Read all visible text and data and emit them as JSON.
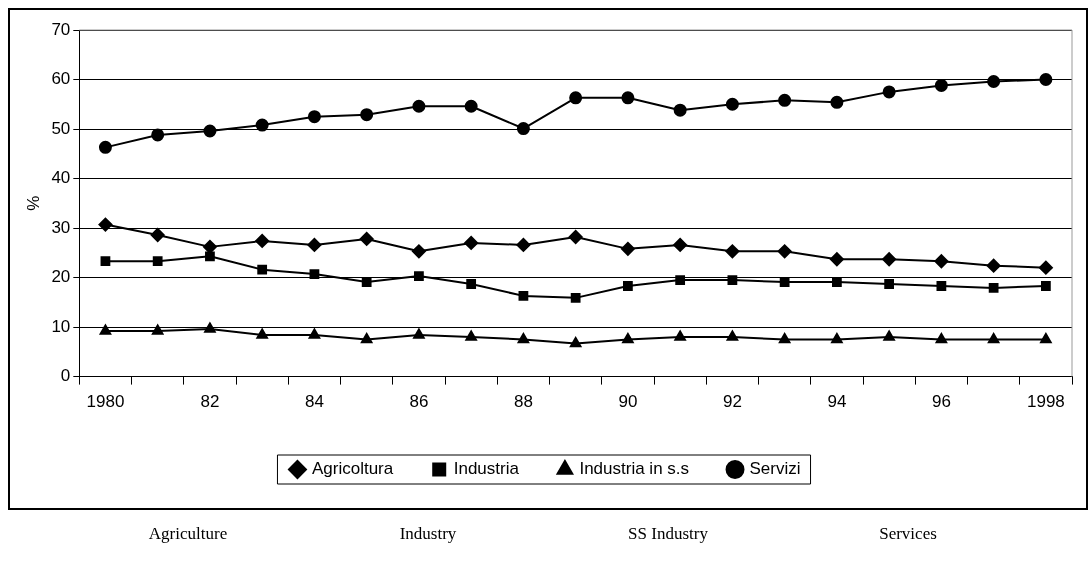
{
  "chart_data": {
    "type": "line",
    "ylabel": "%",
    "categories": [
      "1980",
      null,
      "82",
      null,
      "84",
      null,
      "86",
      null,
      "88",
      null,
      "90",
      null,
      "92",
      null,
      "94",
      null,
      "96",
      null,
      "1998"
    ],
    "series": [
      {
        "name": "Agricoltura",
        "color": "#000000",
        "marker": "diamond",
        "values": [
          30.7,
          28.6,
          26.2,
          27.4,
          26.6,
          27.8,
          25.3,
          27.0,
          26.6,
          28.2,
          25.8,
          26.6,
          25.3,
          25.3,
          23.7,
          23.7,
          23.3,
          22.4,
          22.0
        ]
      },
      {
        "name": "Industria",
        "color": "#000000",
        "marker": "square",
        "values": [
          23.3,
          23.3,
          24.3,
          21.6,
          20.7,
          19.1,
          20.3,
          18.7,
          16.3,
          15.9,
          18.3,
          19.5,
          19.5,
          19.1,
          19.1,
          18.7,
          18.3,
          17.9,
          18.3
        ]
      },
      {
        "name": "Industria in s.s",
        "color": "#000000",
        "marker": "triangle",
        "values": [
          9.2,
          9.2,
          9.6,
          8.4,
          8.4,
          7.5,
          8.4,
          8.0,
          7.5,
          6.7,
          7.5,
          8.0,
          8.0,
          7.5,
          7.5,
          8.0,
          7.5,
          7.5,
          7.5
        ]
      },
      {
        "name": "Servizi",
        "color": "#000000",
        "marker": "circle",
        "values": [
          46.3,
          48.8,
          49.6,
          50.8,
          52.5,
          52.9,
          54.6,
          54.6,
          50.1,
          56.3,
          56.3,
          53.8,
          55.0,
          55.8,
          55.4,
          57.5,
          58.8,
          59.6,
          60.0
        ]
      }
    ],
    "ylim": [
      0,
      70
    ],
    "yticks": [
      0,
      10,
      20,
      30,
      40,
      50,
      60,
      70
    ],
    "grid": "y",
    "legend": "bottom",
    "line_style": "solid",
    "annotations": [
      "Agriculture",
      "Industry",
      "SS Industry",
      "Services"
    ]
  }
}
